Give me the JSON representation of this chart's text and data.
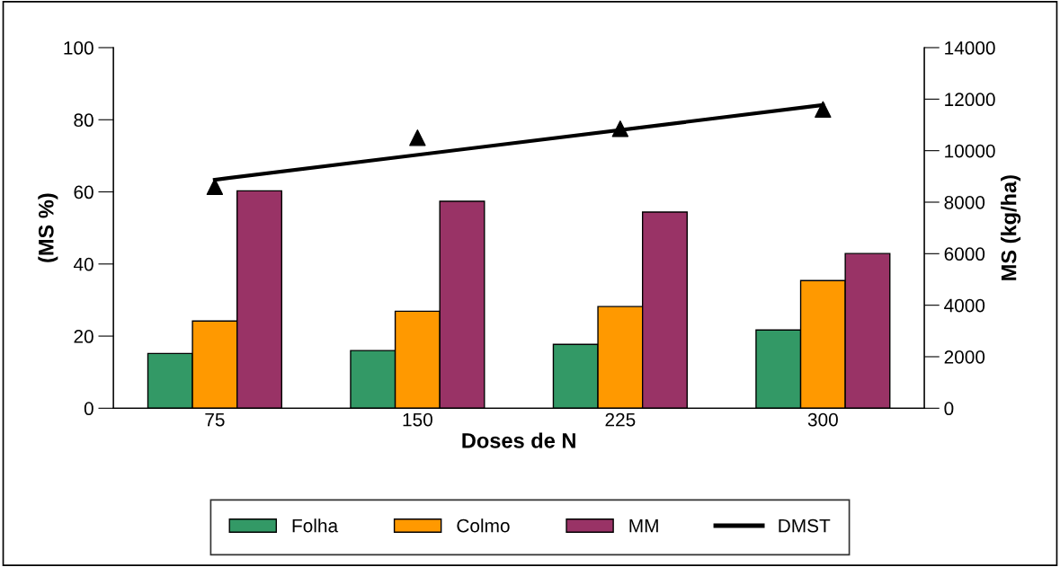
{
  "chart_data": {
    "type": "bar",
    "xlabel": "Doses de N",
    "ylabel": "(MS %)",
    "y2label": "MS (kg/ha)",
    "categories": [
      "75",
      "150",
      "225",
      "300"
    ],
    "series": [
      {
        "name": "Folha",
        "color": "#339966",
        "values": [
          15.2,
          16,
          17.7,
          21.7
        ]
      },
      {
        "name": "Colmo",
        "color": "#ff9900",
        "values": [
          24.2,
          26.9,
          28.2,
          35.4
        ]
      },
      {
        "name": "MM",
        "color": "#993366",
        "values": [
          60.3,
          57.4,
          54.4,
          42.9
        ]
      },
      {
        "type": "scatter",
        "axis": "y2",
        "color": "#000000",
        "marker": "triangle",
        "x": [
          "75",
          "150",
          "225",
          "300"
        ],
        "values": [
          8600,
          10500,
          10850,
          11600
        ]
      },
      {
        "type": "line",
        "name": "DMST",
        "axis": "y2",
        "color": "#000000",
        "x": [
          "75",
          "300"
        ],
        "values": [
          8870,
          11770
        ]
      }
    ],
    "ylim": [
      0,
      100
    ],
    "yticks": [
      0,
      20,
      40,
      60,
      80,
      100
    ],
    "y2lim": [
      0,
      14000
    ],
    "y2ticks": [
      0,
      2000,
      4000,
      6000,
      8000,
      10000,
      12000,
      14000
    ],
    "grid": false,
    "legend": "bottom"
  }
}
